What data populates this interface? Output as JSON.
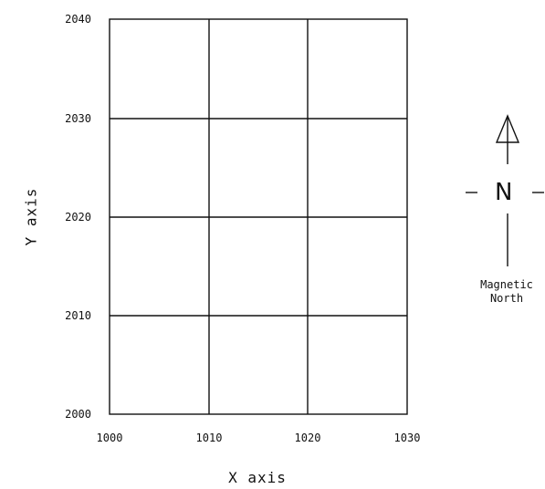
{
  "axes": {
    "x_title": "X axis",
    "y_title": "Y axis",
    "x_ticks": [
      "1000",
      "1010",
      "1020",
      "1030"
    ],
    "y_ticks": [
      "2040",
      "2030",
      "2020",
      "2010",
      "2000"
    ]
  },
  "compass": {
    "letter": "N",
    "caption": "Magnetic\nNorth"
  },
  "colors": {
    "line": "#111111",
    "background": "#ffffff"
  }
}
